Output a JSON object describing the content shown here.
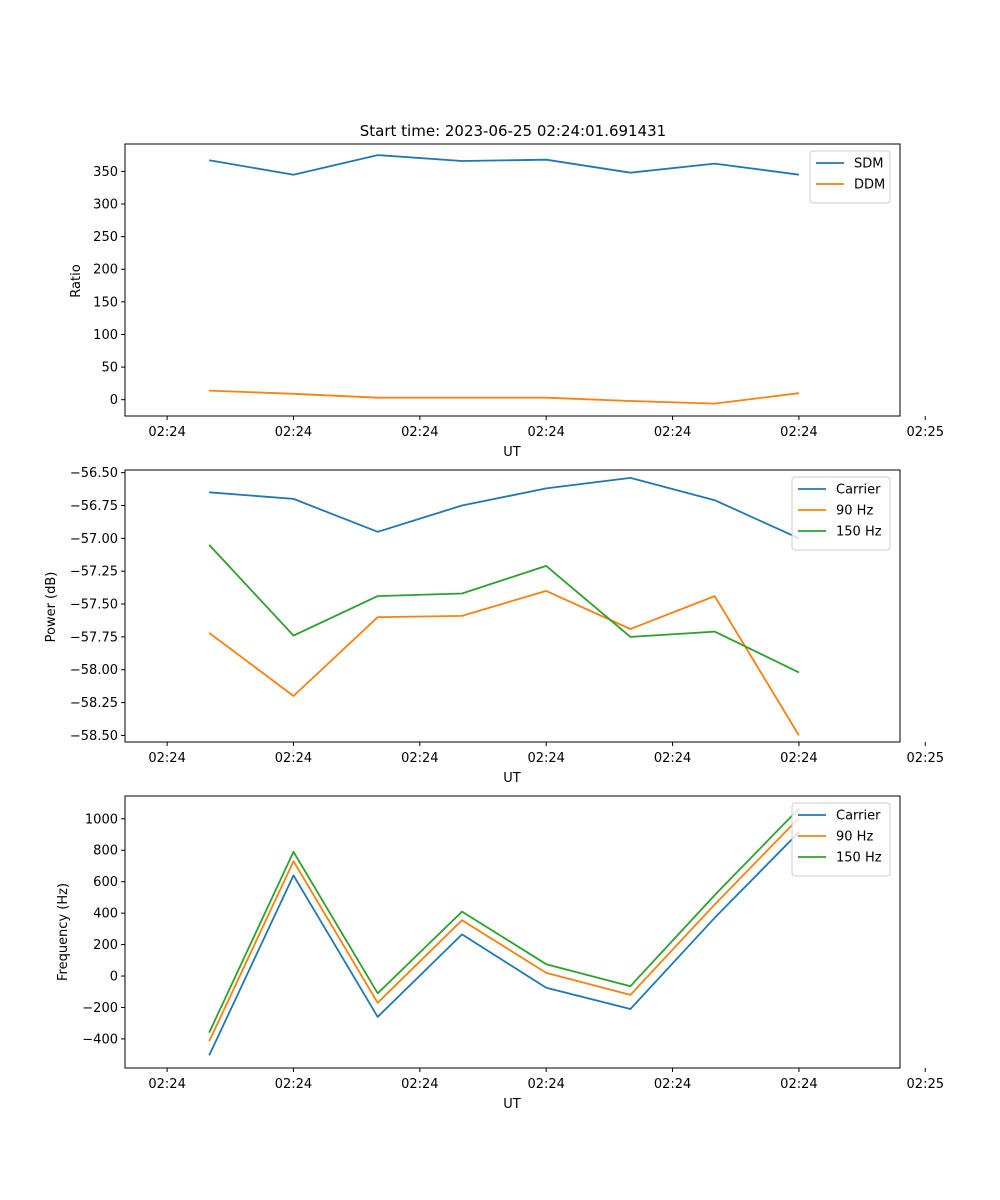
{
  "colors": {
    "series": [
      "#1f77b4",
      "#ff7f0e",
      "#2ca02c"
    ],
    "axes": "#000000",
    "legend_border": "#cccccc",
    "background": "#ffffff"
  },
  "chart_data": [
    {
      "type": "line",
      "title": "Start time: 2023-06-25 02:24:01.691431",
      "xlabel": "UT",
      "ylabel": "Ratio",
      "xlim": [
        -0.5,
        8.7
      ],
      "x_ticks": [
        {
          "value": 0,
          "label": "02:24"
        },
        {
          "value": 1.5,
          "label": "02:24"
        },
        {
          "value": 3,
          "label": "02:24"
        },
        {
          "value": 4.5,
          "label": "02:24"
        },
        {
          "value": 6,
          "label": "02:24"
        },
        {
          "value": 7.5,
          "label": "02:24"
        },
        {
          "value": 9,
          "label": "02:25"
        }
      ],
      "ylim": [
        -25,
        392
      ],
      "y_ticks": [
        {
          "value": 0,
          "label": "0"
        },
        {
          "value": 50,
          "label": "50"
        },
        {
          "value": 100,
          "label": "100"
        },
        {
          "value": 150,
          "label": "150"
        },
        {
          "value": 200,
          "label": "200"
        },
        {
          "value": 250,
          "label": "250"
        },
        {
          "value": 300,
          "label": "300"
        },
        {
          "value": 350,
          "label": "350"
        }
      ],
      "x": [
        0.5,
        1.5,
        2.5,
        3.5,
        4.5,
        5.5,
        6.5,
        7.5
      ],
      "series": [
        {
          "name": "SDM",
          "values": [
            367,
            345,
            375,
            366,
            368,
            348,
            362,
            345
          ]
        },
        {
          "name": "DDM",
          "values": [
            14,
            9,
            3,
            3,
            3,
            -2,
            -6,
            10
          ]
        }
      ],
      "legend": "upper right",
      "grid": false
    },
    {
      "type": "line",
      "title": "",
      "xlabel": "UT",
      "ylabel": "Power (dB)",
      "xlim": [
        -0.5,
        8.7
      ],
      "x_ticks": [
        {
          "value": 0,
          "label": "02:24"
        },
        {
          "value": 1.5,
          "label": "02:24"
        },
        {
          "value": 3,
          "label": "02:24"
        },
        {
          "value": 4.5,
          "label": "02:24"
        },
        {
          "value": 6,
          "label": "02:24"
        },
        {
          "value": 7.5,
          "label": "02:24"
        },
        {
          "value": 9,
          "label": "02:25"
        }
      ],
      "ylim": [
        -58.55,
        -56.48
      ],
      "y_ticks": [
        {
          "value": -56.5,
          "label": "−56.50"
        },
        {
          "value": -56.75,
          "label": "−56.75"
        },
        {
          "value": -57.0,
          "label": "−57.00"
        },
        {
          "value": -57.25,
          "label": "−57.25"
        },
        {
          "value": -57.5,
          "label": "−57.50"
        },
        {
          "value": -57.75,
          "label": "−57.75"
        },
        {
          "value": -58.0,
          "label": "−58.00"
        },
        {
          "value": -58.25,
          "label": "−58.25"
        },
        {
          "value": -58.5,
          "label": "−58.50"
        }
      ],
      "x": [
        0.5,
        1.5,
        2.5,
        3.5,
        4.5,
        5.5,
        6.5,
        7.5
      ],
      "series": [
        {
          "name": "Carrier",
          "values": [
            -56.65,
            -56.7,
            -56.95,
            -56.75,
            -56.62,
            -56.54,
            -56.71,
            -57.0
          ]
        },
        {
          "name": "90 Hz",
          "values": [
            -57.72,
            -58.2,
            -57.6,
            -57.59,
            -57.4,
            -57.69,
            -57.44,
            -58.5
          ]
        },
        {
          "name": "150 Hz",
          "values": [
            -57.05,
            -57.74,
            -57.44,
            -57.42,
            -57.21,
            -57.75,
            -57.71,
            -58.02
          ]
        }
      ],
      "legend": "upper right",
      "grid": false
    },
    {
      "type": "line",
      "title": "",
      "xlabel": "UT",
      "ylabel": "Frequency (Hz)",
      "xlim": [
        -0.5,
        8.7
      ],
      "x_ticks": [
        {
          "value": 0,
          "label": "02:24"
        },
        {
          "value": 1.5,
          "label": "02:24"
        },
        {
          "value": 3,
          "label": "02:24"
        },
        {
          "value": 4.5,
          "label": "02:24"
        },
        {
          "value": 6,
          "label": "02:24"
        },
        {
          "value": 7.5,
          "label": "02:24"
        },
        {
          "value": 9,
          "label": "02:25"
        }
      ],
      "ylim": [
        -585,
        1145
      ],
      "y_ticks": [
        {
          "value": -400,
          "label": "−400"
        },
        {
          "value": -200,
          "label": "−200"
        },
        {
          "value": 0,
          "label": "0"
        },
        {
          "value": 200,
          "label": "200"
        },
        {
          "value": 400,
          "label": "400"
        },
        {
          "value": 600,
          "label": "600"
        },
        {
          "value": 800,
          "label": "800"
        },
        {
          "value": 1000,
          "label": "1000"
        }
      ],
      "x": [
        0.5,
        1.5,
        2.5,
        3.5,
        4.5,
        5.5,
        6.5,
        7.5
      ],
      "series": [
        {
          "name": "Carrier",
          "values": [
            -505,
            640,
            -260,
            265,
            -75,
            -210,
            370,
            915
          ]
        },
        {
          "name": "90 Hz",
          "values": [
            -415,
            730,
            -170,
            355,
            20,
            -120,
            455,
            1005
          ]
        },
        {
          "name": "150 Hz",
          "values": [
            -360,
            790,
            -110,
            410,
            75,
            -65,
            515,
            1065
          ]
        }
      ],
      "legend": "upper right",
      "grid": false
    }
  ]
}
